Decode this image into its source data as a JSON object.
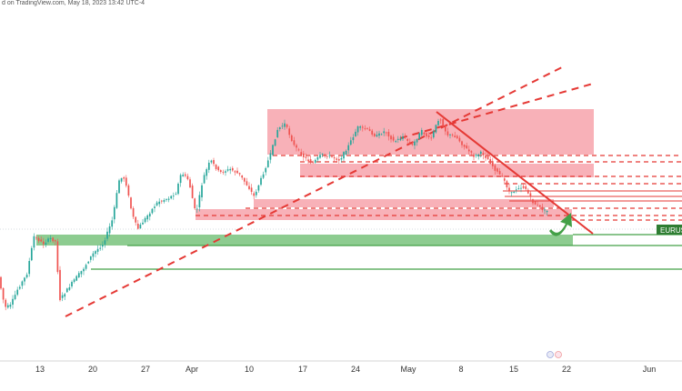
{
  "header": {
    "text": "d on TradingView.com, May 18, 2023 13:42 UTC-4"
  },
  "chart_data": {
    "type": "candlestick",
    "title": "",
    "xlabel": "",
    "ylabel": "",
    "x_tick_labels": [
      "13",
      "20",
      "27",
      "Apr",
      "10",
      "17",
      "24",
      "May",
      "8",
      "15",
      "22",
      "Jun"
    ],
    "price_tag": "EURUS",
    "grid": false,
    "colors": {
      "up": "#26a69a",
      "down": "#ef5350",
      "resistance_zone": "#f7a3ab",
      "support_zone": "#81c784",
      "trendline": "#e53935",
      "support_line": "#43a047",
      "tag": "#2e7d32",
      "arrow": "#43a047"
    }
  }
}
